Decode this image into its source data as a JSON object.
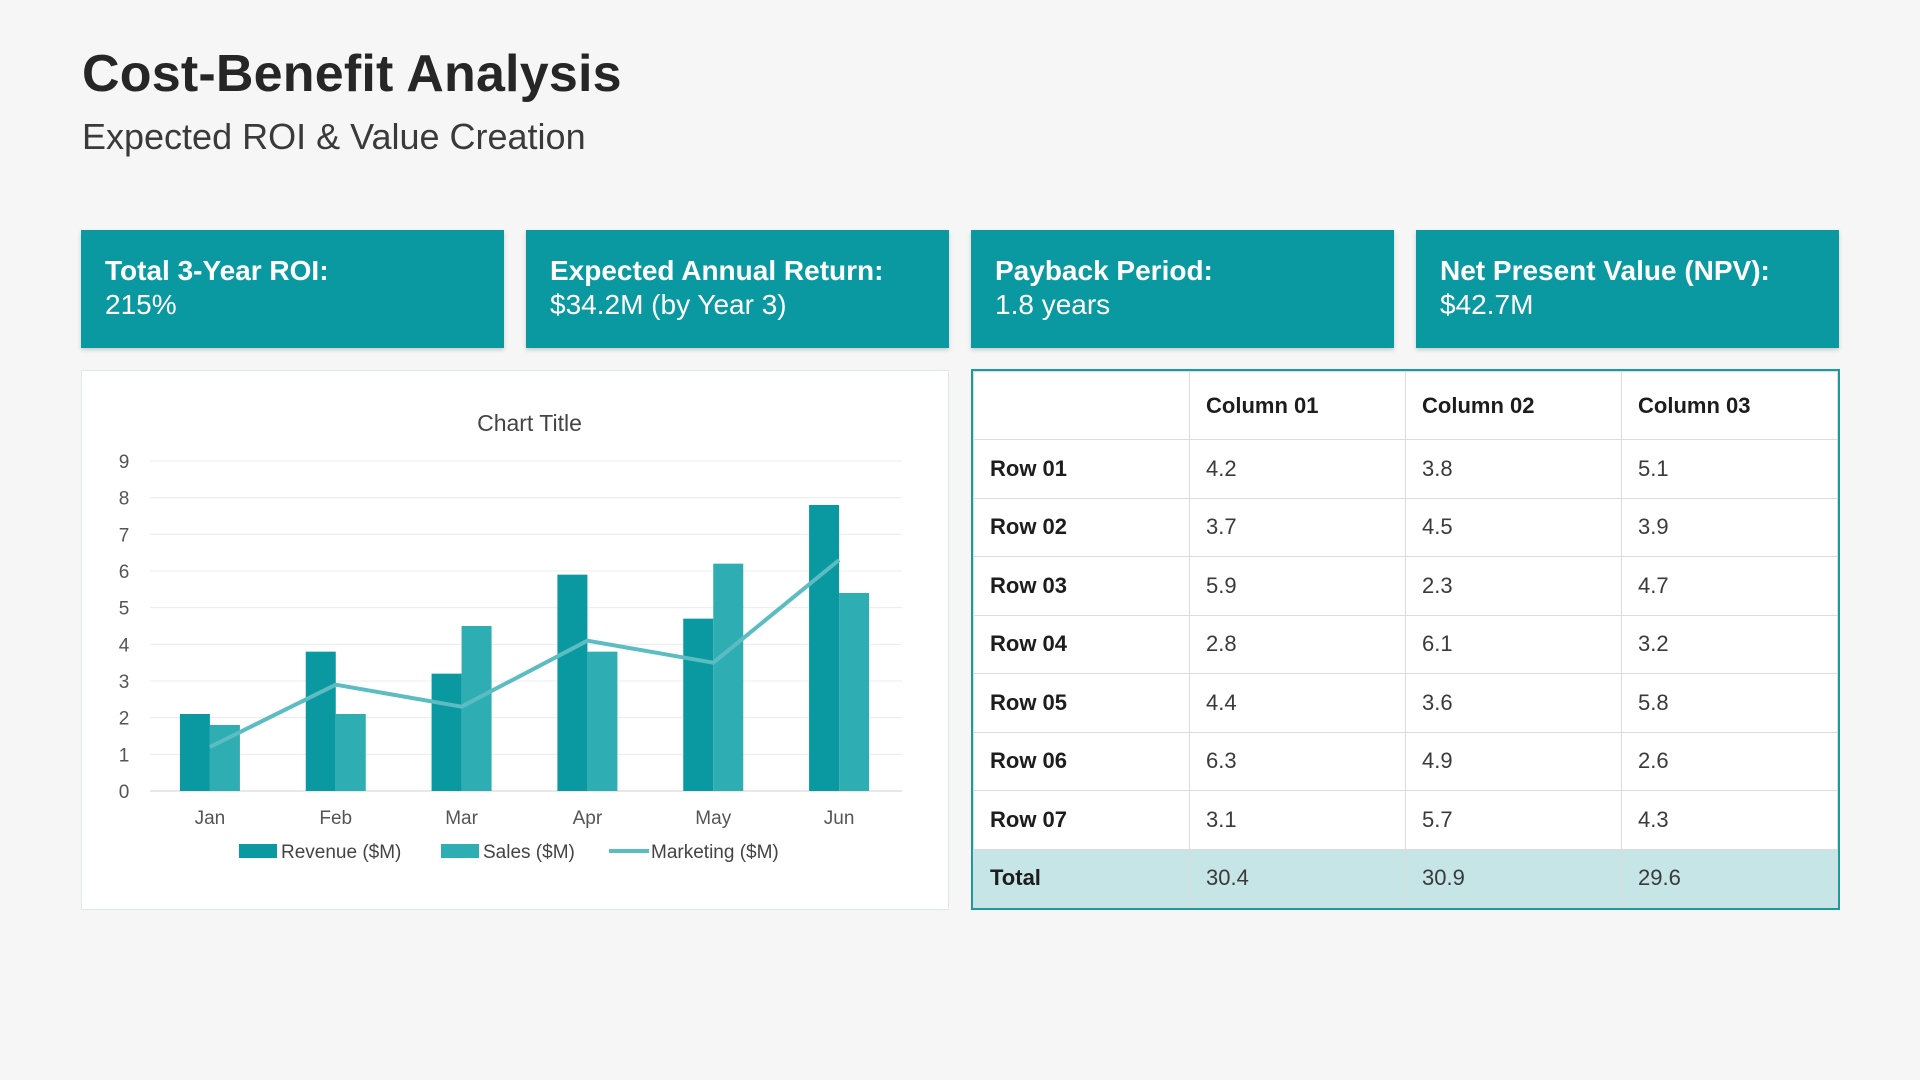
{
  "header": {
    "title": "Cost-Benefit Analysis",
    "subtitle": "Expected ROI & Value Creation"
  },
  "kpis": [
    {
      "label": "Total 3-Year ROI:",
      "value": "215%"
    },
    {
      "label": "Expected Annual Return:",
      "value": "$34.2M (by Year 3)"
    },
    {
      "label": "Payback Period:",
      "value": "1.8 years"
    },
    {
      "label": "Net Present Value (NPV):",
      "value": "$42.7M"
    }
  ],
  "colors": {
    "accent": "#0a99a1",
    "sales": "#2eaeb3",
    "marketing": "#5bbcc1",
    "total_row": "#c6e5e7"
  },
  "chart_data": {
    "type": "bar",
    "title": "Chart Title",
    "categories": [
      "Jan",
      "Feb",
      "Mar",
      "Apr",
      "May",
      "Jun"
    ],
    "series": [
      {
        "name": "Revenue ($M)",
        "type": "bar",
        "color": "#0a99a1",
        "values": [
          2.1,
          3.8,
          3.2,
          5.9,
          4.7,
          7.8
        ]
      },
      {
        "name": "Sales ($M)",
        "type": "bar",
        "color": "#2eaeb3",
        "values": [
          1.8,
          2.1,
          4.5,
          3.8,
          6.2,
          5.4
        ]
      },
      {
        "name": "Marketing ($M)",
        "type": "line",
        "color": "#5bbcc1",
        "values": [
          1.2,
          2.9,
          2.3,
          4.1,
          3.5,
          6.3
        ]
      }
    ],
    "ylim": [
      0,
      9
    ],
    "yticks": [
      0,
      1,
      2,
      3,
      4,
      5,
      6,
      7,
      8,
      9
    ],
    "grid": true,
    "legend": "bottom"
  },
  "table": {
    "columns": [
      "",
      "Column 01",
      "Column 02",
      "Column 03"
    ],
    "rows": [
      [
        "Row 01",
        "4.2",
        "3.8",
        "5.1"
      ],
      [
        "Row 02",
        "3.7",
        "4.5",
        "3.9"
      ],
      [
        "Row 03",
        "5.9",
        "2.3",
        "4.7"
      ],
      [
        "Row 04",
        "2.8",
        "6.1",
        "3.2"
      ],
      [
        "Row 05",
        "4.4",
        "3.6",
        "5.8"
      ],
      [
        "Row 06",
        "6.3",
        "4.9",
        "2.6"
      ],
      [
        "Row 07",
        "3.1",
        "5.7",
        "4.3"
      ]
    ],
    "total": [
      "Total",
      "30.4",
      "30.9",
      "29.6"
    ]
  }
}
